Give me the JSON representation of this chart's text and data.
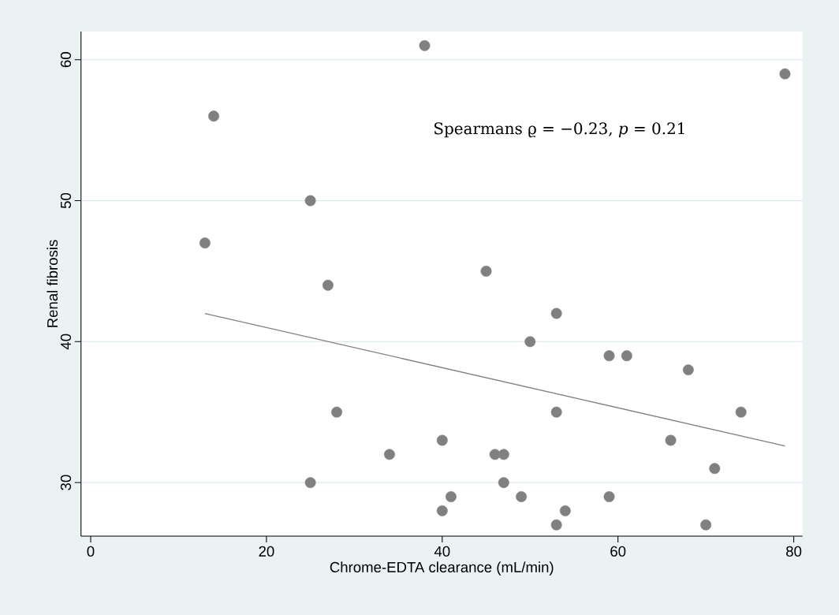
{
  "chart_data": {
    "type": "scatter",
    "xlabel": "Chrome-EDTA clearance (mL/min)",
    "ylabel": "Renal fibrosis",
    "xlim": [
      -1.1,
      81
    ],
    "ylim": [
      26.2,
      62
    ],
    "xticks": [
      0,
      20,
      40,
      60,
      80
    ],
    "yticks": [
      30,
      40,
      50,
      60
    ],
    "grid": "y",
    "marker": "circle",
    "annotations": [
      "Spearmans ϱ = −0.23, *p* = 0.21"
    ],
    "series": [
      {
        "color": "#808080",
        "x": [
          13,
          14,
          38,
          79,
          25,
          25,
          27,
          28,
          34,
          40,
          40,
          41,
          45,
          46,
          47,
          47,
          49,
          50,
          53,
          53,
          53,
          54,
          59,
          59,
          61,
          66,
          68,
          70,
          71,
          74
        ],
        "values": [
          47,
          56,
          61,
          59,
          50,
          30,
          44,
          35,
          32,
          33,
          28,
          29,
          45,
          32,
          32,
          30,
          29,
          40,
          42,
          35,
          27,
          28,
          39,
          29,
          39,
          33,
          38,
          27,
          31,
          35
        ]
      },
      {
        "type": "line",
        "color": "#808080",
        "marker": "none",
        "x": [
          13,
          79
        ],
        "values": [
          42,
          32.6
        ]
      }
    ]
  }
}
